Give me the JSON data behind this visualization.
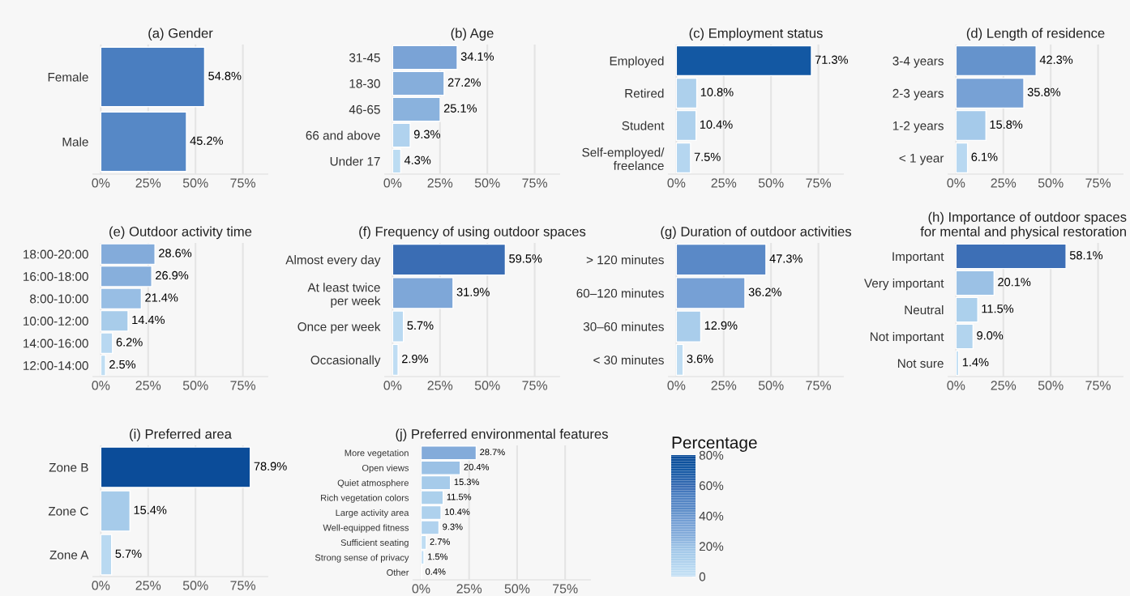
{
  "chart_data": [
    {
      "type": "bar",
      "orientation": "horizontal",
      "title": "(a) Gender",
      "categories": [
        "Female",
        "Male"
      ],
      "values": [
        54.8,
        45.2
      ],
      "value_labels": [
        "54.8%",
        "45.2%"
      ],
      "colors": [
        "#4a7ec0",
        "#5688c6"
      ],
      "xlim": [
        -4,
        88
      ],
      "xticks": [
        {
          "value": 0,
          "label": "0%"
        },
        {
          "value": 25,
          "label": "25%"
        },
        {
          "value": 50,
          "label": "50%"
        },
        {
          "value": 75,
          "label": "75%"
        }
      ],
      "grid": "x"
    },
    {
      "type": "bar",
      "orientation": "horizontal",
      "title": "(b) Age",
      "categories": [
        "31-45",
        "18-30",
        "46-65",
        "66 and above",
        "Under 17"
      ],
      "values": [
        34.1,
        27.2,
        25.1,
        9.3,
        4.3
      ],
      "value_labels": [
        "34.1%",
        "27.2%",
        "25.1%",
        "9.3%",
        "4.3%"
      ],
      "colors": [
        "#7aa3d6",
        "#86aedb",
        "#8ab2dd",
        "#b0d2ee",
        "#bcdcf2"
      ],
      "xlim": [
        -4,
        88
      ],
      "xticks": [
        {
          "value": 0,
          "label": "0%"
        },
        {
          "value": 25,
          "label": "25%"
        },
        {
          "value": 50,
          "label": "50%"
        },
        {
          "value": 75,
          "label": "75%"
        }
      ],
      "grid": "x"
    },
    {
      "type": "bar",
      "orientation": "horizontal",
      "title": "(c) Employment status",
      "categories": [
        "Employed",
        "Retired",
        "Student",
        "Self-employed/\nfreelance"
      ],
      "values": [
        71.3,
        10.8,
        10.4,
        7.5
      ],
      "value_labels": [
        "71.3%",
        "10.8%",
        "10.4%",
        "7.5%"
      ],
      "colors": [
        "#1358a3",
        "#add0ec",
        "#aed1ed",
        "#b5d6f0"
      ],
      "xlim": [
        -4,
        88
      ],
      "xticks": [
        {
          "value": 0,
          "label": "0%"
        },
        {
          "value": 25,
          "label": "25%"
        },
        {
          "value": 50,
          "label": "50%"
        },
        {
          "value": 75,
          "label": "75%"
        }
      ],
      "grid": "x"
    },
    {
      "type": "bar",
      "orientation": "horizontal",
      "title": "(d) Length of residence",
      "categories": [
        "3-4 years",
        "2-3 years",
        "1-2 years",
        "< 1 year"
      ],
      "values": [
        42.3,
        35.8,
        15.8,
        6.1
      ],
      "value_labels": [
        "42.3%",
        "35.8%",
        "15.8%",
        "6.1%"
      ],
      "colors": [
        "#6593cc",
        "#77a1d5",
        "#a5caea",
        "#b8d8f1"
      ],
      "xlim": [
        -4,
        88
      ],
      "xticks": [
        {
          "value": 0,
          "label": "0%"
        },
        {
          "value": 25,
          "label": "25%"
        },
        {
          "value": 50,
          "label": "50%"
        },
        {
          "value": 75,
          "label": "75%"
        }
      ],
      "grid": "x"
    },
    {
      "type": "bar",
      "orientation": "horizontal",
      "title": "(e) Outdoor activity time",
      "categories": [
        "18:00-20:00",
        "16:00-18:00",
        "8:00-10:00",
        "10:00-12:00",
        "14:00-16:00",
        "12:00-14:00"
      ],
      "values": [
        28.6,
        26.9,
        21.4,
        14.4,
        6.2,
        2.5
      ],
      "value_labels": [
        "28.6%",
        "26.9%",
        "21.4%",
        "14.4%",
        "6.2%",
        "2.5%"
      ],
      "colors": [
        "#83abda",
        "#87afdc",
        "#98bee4",
        "#a8ccea",
        "#b8d8f1",
        "#c0def3"
      ],
      "xlim": [
        -4,
        88
      ],
      "xticks": [
        {
          "value": 0,
          "label": "0%"
        },
        {
          "value": 25,
          "label": "25%"
        },
        {
          "value": 50,
          "label": "50%"
        },
        {
          "value": 75,
          "label": "75%"
        }
      ],
      "grid": "x"
    },
    {
      "type": "bar",
      "orientation": "horizontal",
      "title": "(f) Frequency of using outdoor spaces",
      "categories": [
        "Almost every day",
        "At least twice\nper week",
        "Once per week",
        "Occasionally"
      ],
      "values": [
        59.5,
        31.9,
        5.7,
        2.9
      ],
      "value_labels": [
        "59.5%",
        "31.9%",
        "5.7%",
        "2.9%"
      ],
      "colors": [
        "#3a6db4",
        "#7ea7d8",
        "#b9d9f1",
        "#bfddf3"
      ],
      "xlim": [
        -4,
        88
      ],
      "xticks": [
        {
          "value": 0,
          "label": "0%"
        },
        {
          "value": 25,
          "label": "25%"
        },
        {
          "value": 50,
          "label": "50%"
        },
        {
          "value": 75,
          "label": "75%"
        }
      ],
      "grid": "x"
    },
    {
      "type": "bar",
      "orientation": "horizontal",
      "title": "(g) Duration of outdoor activities",
      "categories": [
        "> 120 minutes",
        "60–120 minutes",
        "30–60 minutes",
        "< 30 minutes"
      ],
      "values": [
        47.3,
        36.2,
        12.9,
        3.6
      ],
      "value_labels": [
        "47.3%",
        "36.2%",
        "12.9%",
        "3.6%"
      ],
      "colors": [
        "#5a89c7",
        "#76a0d5",
        "#a9cdeb",
        "#bedcf2"
      ],
      "xlim": [
        -4,
        88
      ],
      "xticks": [
        {
          "value": 0,
          "label": "0%"
        },
        {
          "value": 25,
          "label": "25%"
        },
        {
          "value": 50,
          "label": "50%"
        },
        {
          "value": 75,
          "label": "75%"
        }
      ],
      "grid": "x"
    },
    {
      "type": "bar",
      "orientation": "horizontal",
      "title": "(h) Importance of outdoor spaces\nfor mental and physical restoration",
      "categories": [
        "Important",
        "Very important",
        "Neutral",
        "Not important",
        "Not sure"
      ],
      "values": [
        58.1,
        20.1,
        11.5,
        9.0,
        1.4
      ],
      "value_labels": [
        "58.1%",
        "20.1%",
        "11.5%",
        "9.0%",
        "1.4%"
      ],
      "colors": [
        "#3d6fb6",
        "#9bc1e5",
        "#acd0ec",
        "#b2d4ee",
        "#c2dff4"
      ],
      "xlim": [
        -4,
        88
      ],
      "xticks": [
        {
          "value": 0,
          "label": "0%"
        },
        {
          "value": 25,
          "label": "25%"
        },
        {
          "value": 50,
          "label": "50%"
        },
        {
          "value": 75,
          "label": "75%"
        }
      ],
      "grid": "x"
    },
    {
      "type": "bar",
      "orientation": "horizontal",
      "title": "(i) Preferred area",
      "categories": [
        "Zone B",
        "Zone C",
        "Zone A"
      ],
      "values": [
        78.9,
        15.4,
        5.7
      ],
      "value_labels": [
        "78.9%",
        "15.4%",
        "5.7%"
      ],
      "colors": [
        "#0b4c99",
        "#a6cbea",
        "#b9d9f1"
      ],
      "xlim": [
        -4,
        88
      ],
      "xticks": [
        {
          "value": 0,
          "label": "0%"
        },
        {
          "value": 25,
          "label": "25%"
        },
        {
          "value": 50,
          "label": "50%"
        },
        {
          "value": 75,
          "label": "75%"
        }
      ],
      "grid": "x"
    },
    {
      "type": "bar",
      "orientation": "horizontal",
      "title": "(j) Preferred environmental features",
      "categories": [
        "More vegetation",
        "Open views",
        "Quiet atmosphere",
        "Rich vegetation colors",
        "Large activity area",
        "Well-equipped fitness",
        "Sufficient seating",
        "Strong sense of privacy",
        "Other"
      ],
      "values": [
        28.7,
        20.4,
        15.3,
        11.5,
        10.4,
        9.3,
        2.7,
        1.5,
        0.4
      ],
      "value_labels": [
        "28.7%",
        "20.4%",
        "15.3%",
        "11.5%",
        "10.4%",
        "9.3%",
        "2.7%",
        "1.5%",
        "0.4%"
      ],
      "colors": [
        "#83abda",
        "#9bc1e5",
        "#a6cbea",
        "#acd0ec",
        "#aed1ed",
        "#b0d2ee",
        "#bfddf3",
        "#c1def4",
        "#c4e0f5"
      ],
      "xlim": [
        -4,
        88
      ],
      "xticks": [
        {
          "value": 0,
          "label": "0%"
        },
        {
          "value": 25,
          "label": "25%"
        },
        {
          "value": 50,
          "label": "50%"
        },
        {
          "value": 75,
          "label": "75%"
        }
      ],
      "grid": "x",
      "clabel": "Percentage",
      "clim": [
        0,
        80
      ],
      "cticks": [
        {
          "value": 0,
          "label": "0"
        },
        {
          "value": 20,
          "label": "20%"
        },
        {
          "value": 40,
          "label": "40%"
        },
        {
          "value": 60,
          "label": "60%"
        },
        {
          "value": 80,
          "label": "80%"
        }
      ]
    }
  ]
}
